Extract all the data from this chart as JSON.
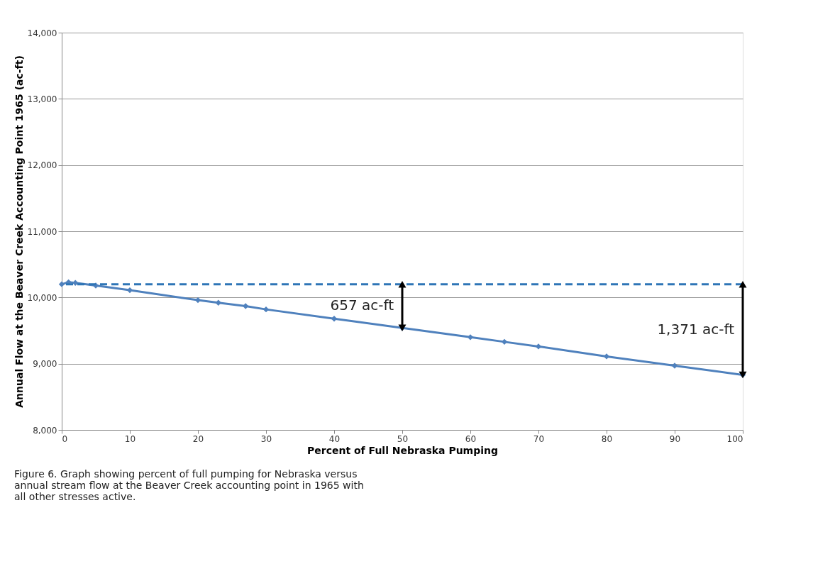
{
  "chart_data": {
    "type": "line",
    "xlabel": "Percent of Full Nebraska Pumping",
    "ylabel": "Annual Flow at the Beaver Creek Accounting Point 1965 (ac-ft)",
    "x": [
      0,
      1,
      2,
      5,
      10,
      20,
      23,
      27,
      30,
      40,
      50,
      60,
      65,
      70,
      80,
      90,
      100
    ],
    "series": [
      {
        "color": "#4f81bd",
        "values": [
          10200,
          10230,
          10220,
          10180,
          10110,
          9960,
          9920,
          9870,
          9820,
          9680,
          9540,
          9400,
          9330,
          9260,
          9110,
          8970,
          8830
        ]
      }
    ],
    "xlim": [
      0,
      100
    ],
    "xticks": [
      0,
      10,
      20,
      30,
      40,
      50,
      60,
      70,
      80,
      90,
      100
    ],
    "ylim": [
      8000,
      14000
    ],
    "yticks": [
      {
        "value": 8000,
        "label": "8,000"
      },
      {
        "value": 9000,
        "label": "9,000"
      },
      {
        "value": 10000,
        "label": "10,000"
      },
      {
        "value": 11000,
        "label": "11,000"
      },
      {
        "value": 12000,
        "label": "12,000"
      },
      {
        "value": 13000,
        "label": "13,000"
      },
      {
        "value": 14000,
        "label": "14,000"
      }
    ],
    "ref_lines": [
      {
        "axis": "y",
        "value": 10200,
        "color": "#2e75b6",
        "line_style": "dashed"
      }
    ],
    "annotations": [
      {
        "text": "657 ac-ft",
        "x": 50,
        "y": 9540
      },
      {
        "text": "1,371 ac-ft",
        "x": 100,
        "y": 8830
      },
      "Figure 6. Graph showing percent of full pumping for Nebraska versus annual stream flow at the Beaver Creek accounting point in 1965 with all other stresses active."
    ],
    "grid": "y",
    "marker": "diamond",
    "line_style": "solid"
  }
}
